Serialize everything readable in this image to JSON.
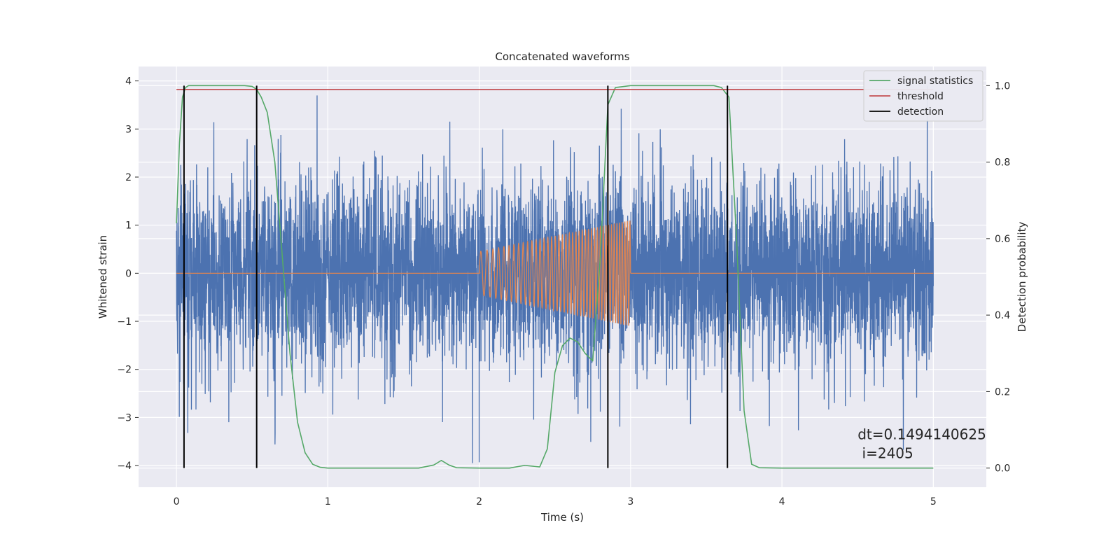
{
  "chart_data": {
    "type": "line",
    "title": "Concatenated waveforms",
    "xlabel": "Time (s)",
    "ylabel": "Whitened strain",
    "y2label": "Detection probability",
    "xlim": [
      -0.25,
      5.35
    ],
    "ylim": [
      -4.45,
      4.3
    ],
    "y2lim": [
      -0.05,
      1.05
    ],
    "xticks": [
      "0",
      "1",
      "2",
      "3",
      "4",
      "5"
    ],
    "yticks": [
      "4",
      "3",
      "2",
      "1",
      "0",
      "−1",
      "−2",
      "−3",
      "−4"
    ],
    "y2ticks": [
      "1.0",
      "0.8",
      "0.6",
      "0.4",
      "0.2",
      "0.0"
    ],
    "grid": true,
    "legend_position": "top-right",
    "legend": [
      "signal statistics",
      "threshold",
      "detection"
    ],
    "series": [
      {
        "name": "whitened noise",
        "axis": "left",
        "color": "#4c72b0",
        "description": "random noise spanning 0 to 5 s, amplitude mostly within ±2.5, peaks near ±3.9"
      },
      {
        "name": "injected chirp",
        "axis": "left",
        "color": "#dd8452",
        "segments": [
          {
            "x": [
              0,
              2
            ],
            "y": [
              0,
              0
            ]
          },
          {
            "chirp": {
              "t_start": 2.0,
              "t_end": 3.0,
              "amp_start": 0.45,
              "amp_end": 1.1,
              "f_start": 23,
              "f_end": 60
            }
          },
          {
            "x": [
              3,
              5
            ],
            "y": [
              0,
              0
            ]
          }
        ]
      },
      {
        "name": "signal statistics",
        "axis": "right",
        "color": "#55a868",
        "x": [
          0.0,
          0.02,
          0.04,
          0.06,
          0.08,
          0.1,
          0.2,
          0.3,
          0.4,
          0.45,
          0.5,
          0.53,
          0.56,
          0.6,
          0.65,
          0.7,
          0.75,
          0.8,
          0.85,
          0.9,
          0.95,
          1.0,
          1.2,
          1.4,
          1.6,
          1.7,
          1.75,
          1.8,
          1.85,
          2.0,
          2.2,
          2.3,
          2.4,
          2.45,
          2.5,
          2.55,
          2.6,
          2.65,
          2.7,
          2.75,
          2.8,
          2.85,
          2.9,
          3.0,
          3.2,
          3.4,
          3.55,
          3.6,
          3.65,
          3.7,
          3.75,
          3.8,
          3.85,
          4.0,
          4.5,
          5.0
        ],
        "y": [
          0.64,
          0.85,
          0.97,
          0.995,
          1.0,
          1.0,
          1.0,
          1.0,
          1.0,
          1.0,
          0.998,
          0.99,
          0.97,
          0.93,
          0.8,
          0.55,
          0.3,
          0.12,
          0.04,
          0.01,
          0.002,
          0.0,
          0.0,
          0.0,
          0.0,
          0.008,
          0.02,
          0.008,
          0.001,
          0.0,
          0.0,
          0.007,
          0.003,
          0.05,
          0.25,
          0.32,
          0.34,
          0.33,
          0.3,
          0.28,
          0.55,
          0.95,
          0.995,
          1.0,
          1.0,
          1.0,
          1.0,
          0.995,
          0.97,
          0.6,
          0.15,
          0.01,
          0.001,
          0.0,
          0.0,
          0.0
        ]
      },
      {
        "name": "threshold",
        "axis": "right",
        "color": "#c44e52",
        "x": [
          0,
          5
        ],
        "y": [
          0.99,
          0.99
        ]
      },
      {
        "name": "detection",
        "axis": "right",
        "color": "#000000",
        "vlines": [
          0.05,
          0.53,
          2.85,
          3.64
        ],
        "ymin": 0.0,
        "ymax": 1.0
      }
    ],
    "annotation": {
      "line1": "dt=0.1494140625",
      "line2": " i=2405",
      "x": 4.5,
      "y": -3.25
    }
  }
}
